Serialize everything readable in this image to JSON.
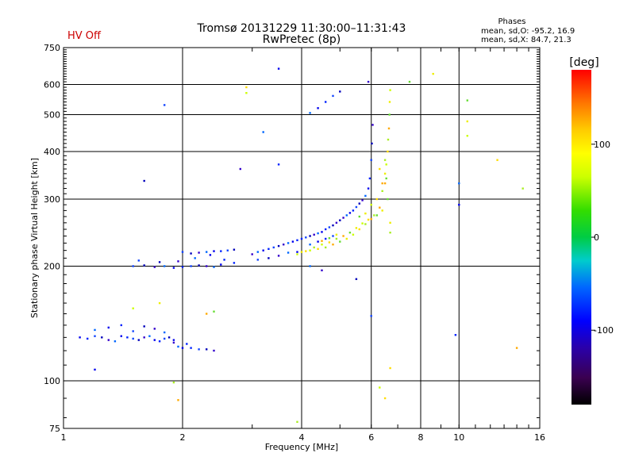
{
  "status_label": "HV Off",
  "status_color": "#cc0000",
  "phases_info": {
    "title": "Phases",
    "line_o": "mean, sd,O:  -95.2, 16.9",
    "line_x": "mean, sd,X:  84.7, 21.3"
  },
  "chart_data": {
    "type": "scatter",
    "title": "Tromsø 20131229 11:30:00–11:31:43",
    "subtitle": "RwPretec (8p)",
    "xlabel": "Frequency [MHz]",
    "ylabel": "Stationary phase Virtual Height [km]",
    "x_scale": "log",
    "y_scale": "log",
    "xlim": [
      1,
      16
    ],
    "ylim": [
      75,
      750
    ],
    "x_ticks": [
      {
        "value": 1,
        "label": "1"
      },
      {
        "value": 2,
        "label": "2"
      },
      {
        "value": 4,
        "label": "4"
      },
      {
        "value": 6,
        "label": "6"
      },
      {
        "value": 8,
        "label": "8"
      },
      {
        "value": 10,
        "label": "10"
      },
      {
        "value": 16,
        "label": "16"
      }
    ],
    "x_grid": [
      2,
      4,
      6,
      8,
      10
    ],
    "y_ticks": [
      {
        "value": 75,
        "label": "75"
      },
      {
        "value": 100,
        "label": "100"
      },
      {
        "value": 200,
        "label": "200"
      },
      {
        "value": 300,
        "label": "300"
      },
      {
        "value": 400,
        "label": "400"
      },
      {
        "value": 500,
        "label": "500"
      },
      {
        "value": 600,
        "label": "600"
      },
      {
        "value": 750,
        "label": "750"
      }
    ],
    "y_grid": [
      100,
      200,
      300,
      400,
      500,
      600
    ],
    "grid": true,
    "colorbar": {
      "label": "[deg]",
      "min": -180,
      "max": 180,
      "ticks": [
        {
          "value": 100,
          "label": "100"
        },
        {
          "value": 0,
          "label": "0"
        },
        {
          "value": -100,
          "label": "-100"
        }
      ]
    },
    "series": [
      {
        "name": "O",
        "points": [
          [
            1.1,
            130
          ],
          [
            1.15,
            129
          ],
          [
            1.2,
            131
          ],
          [
            1.25,
            130
          ],
          [
            1.3,
            128
          ],
          [
            1.35,
            127
          ],
          [
            1.4,
            131
          ],
          [
            1.45,
            130
          ],
          [
            1.5,
            129
          ],
          [
            1.55,
            128
          ],
          [
            1.6,
            130
          ],
          [
            1.65,
            131
          ],
          [
            1.7,
            128
          ],
          [
            1.75,
            127
          ],
          [
            1.8,
            129
          ],
          [
            1.85,
            130
          ],
          [
            1.9,
            126
          ],
          [
            1.95,
            123
          ],
          [
            2.0,
            122
          ],
          [
            2.1,
            122
          ],
          [
            2.2,
            121
          ],
          [
            2.3,
            121
          ],
          [
            2.4,
            120
          ],
          [
            1.2,
            136
          ],
          [
            1.3,
            138
          ],
          [
            1.4,
            140
          ],
          [
            1.5,
            135
          ],
          [
            1.6,
            139
          ],
          [
            1.7,
            137
          ],
          [
            1.8,
            134
          ],
          [
            1.9,
            128
          ],
          [
            2.05,
            125
          ],
          [
            1.5,
            200
          ],
          [
            1.6,
            201
          ],
          [
            1.7,
            199
          ],
          [
            1.8,
            200
          ],
          [
            1.9,
            198
          ],
          [
            2.0,
            199
          ],
          [
            2.1,
            200
          ],
          [
            2.2,
            201
          ],
          [
            2.3,
            200
          ],
          [
            2.4,
            199
          ],
          [
            2.5,
            202
          ],
          [
            2.7,
            204
          ],
          [
            1.55,
            207
          ],
          [
            1.75,
            205
          ],
          [
            1.95,
            206
          ],
          [
            2.15,
            210
          ],
          [
            2.35,
            214
          ],
          [
            2.55,
            208
          ],
          [
            2.0,
            218
          ],
          [
            2.1,
            216
          ],
          [
            2.2,
            217
          ],
          [
            2.3,
            218
          ],
          [
            2.4,
            219
          ],
          [
            2.5,
            219
          ],
          [
            2.6,
            220
          ],
          [
            2.7,
            221
          ],
          [
            3.0,
            215
          ],
          [
            3.1,
            218
          ],
          [
            3.2,
            220
          ],
          [
            3.3,
            222
          ],
          [
            3.4,
            224
          ],
          [
            3.5,
            226
          ],
          [
            3.6,
            228
          ],
          [
            3.7,
            230
          ],
          [
            3.8,
            232
          ],
          [
            3.9,
            234
          ],
          [
            3.1,
            208
          ],
          [
            3.3,
            210
          ],
          [
            3.5,
            213
          ],
          [
            3.7,
            217
          ],
          [
            3.9,
            218
          ],
          [
            4.0,
            236
          ],
          [
            4.1,
            238
          ],
          [
            4.2,
            240
          ],
          [
            4.3,
            242
          ],
          [
            4.4,
            244
          ],
          [
            4.5,
            246
          ],
          [
            4.6,
            250
          ],
          [
            4.7,
            253
          ],
          [
            4.8,
            256
          ],
          [
            4.9,
            260
          ],
          [
            4.2,
            228
          ],
          [
            4.4,
            232
          ],
          [
            4.6,
            236
          ],
          [
            4.8,
            240
          ],
          [
            5.0,
            264
          ],
          [
            5.1,
            268
          ],
          [
            5.2,
            272
          ],
          [
            5.3,
            276
          ],
          [
            5.4,
            280
          ],
          [
            5.5,
            286
          ],
          [
            5.6,
            292
          ],
          [
            5.7,
            298
          ],
          [
            5.8,
            306
          ],
          [
            5.9,
            320
          ],
          [
            5.95,
            340
          ],
          [
            6.0,
            380
          ],
          [
            6.02,
            420
          ],
          [
            6.05,
            470
          ],
          [
            4.2,
            505
          ],
          [
            4.4,
            520
          ],
          [
            4.6,
            540
          ],
          [
            4.8,
            560
          ],
          [
            5.0,
            575
          ],
          [
            2.8,
            360
          ],
          [
            3.2,
            450
          ],
          [
            3.5,
            660
          ],
          [
            3.5,
            370
          ],
          [
            1.8,
            530
          ],
          [
            1.6,
            335
          ],
          [
            5.9,
            610
          ],
          [
            10.0,
            330
          ],
          [
            10.0,
            290
          ],
          [
            9.8,
            132
          ],
          [
            6.0,
            148
          ],
          [
            5.5,
            185
          ],
          [
            4.5,
            195
          ],
          [
            4.2,
            200
          ],
          [
            1.2,
            107
          ]
        ]
      },
      {
        "name": "X",
        "points": [
          [
            4.0,
            218
          ],
          [
            4.2,
            220
          ],
          [
            4.4,
            222
          ],
          [
            4.6,
            224
          ],
          [
            4.8,
            228
          ],
          [
            5.0,
            232
          ],
          [
            5.2,
            236
          ],
          [
            5.4,
            242
          ],
          [
            5.6,
            250
          ],
          [
            5.8,
            258
          ],
          [
            6.0,
            266
          ],
          [
            6.2,
            272
          ],
          [
            6.4,
            280
          ],
          [
            4.5,
            228
          ],
          [
            4.7,
            231
          ],
          [
            4.9,
            236
          ],
          [
            5.1,
            240
          ],
          [
            5.3,
            245
          ],
          [
            5.5,
            252
          ],
          [
            5.7,
            259
          ],
          [
            5.9,
            265
          ],
          [
            6.1,
            272
          ],
          [
            6.3,
            285
          ],
          [
            5.6,
            270
          ],
          [
            5.8,
            275
          ],
          [
            6.0,
            290
          ],
          [
            6.2,
            300
          ],
          [
            6.4,
            315
          ],
          [
            6.5,
            330
          ],
          [
            6.55,
            340
          ],
          [
            6.5,
            350
          ],
          [
            6.55,
            370
          ],
          [
            6.6,
            400
          ],
          [
            6.62,
            430
          ],
          [
            6.65,
            460
          ],
          [
            6.67,
            500
          ],
          [
            6.68,
            540
          ],
          [
            6.7,
            580
          ],
          [
            6.3,
            360
          ],
          [
            6.5,
            380
          ],
          [
            6.4,
            330
          ],
          [
            6.6,
            300
          ],
          [
            6.7,
            260
          ],
          [
            3.9,
            215
          ],
          [
            4.1,
            219
          ],
          [
            4.3,
            224
          ],
          [
            4.5,
            233
          ],
          [
            4.7,
            237
          ],
          [
            4.9,
            242
          ],
          [
            2.9,
            570
          ],
          [
            2.9,
            590
          ],
          [
            1.9,
            99
          ],
          [
            1.95,
            89
          ],
          [
            10.5,
            545
          ],
          [
            10.5,
            480
          ],
          [
            10.5,
            440
          ],
          [
            12.5,
            380
          ],
          [
            14.5,
            320
          ],
          [
            14.0,
            122
          ],
          [
            7.5,
            610
          ],
          [
            8.6,
            640
          ],
          [
            6.3,
            96
          ],
          [
            6.5,
            90
          ],
          [
            3.9,
            78
          ],
          [
            2.3,
            150
          ],
          [
            2.4,
            152
          ],
          [
            1.75,
            160
          ],
          [
            1.5,
            155
          ],
          [
            6.7,
            108
          ],
          [
            6.7,
            245
          ]
        ]
      }
    ]
  }
}
